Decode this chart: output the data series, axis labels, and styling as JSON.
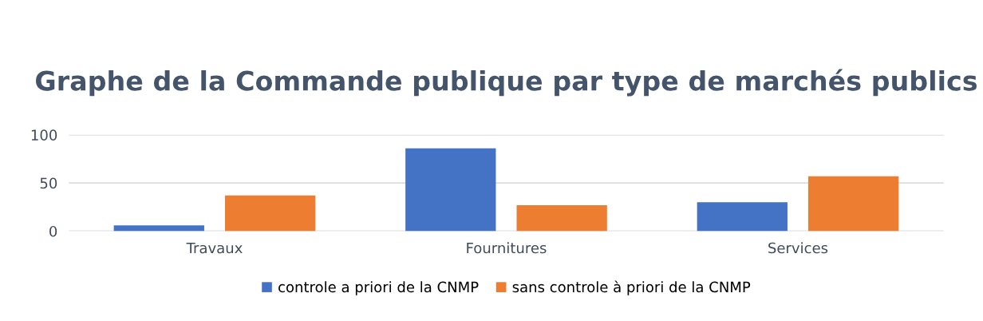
{
  "chart_data": {
    "type": "bar",
    "title": "Graphe de la Commande publique par type de marchés publics",
    "categories": [
      "Travaux",
      "Fournitures",
      "Services"
    ],
    "series": [
      {
        "name": "controle a priori de la CNMP",
        "color": "#4472c4",
        "values": [
          6,
          86,
          30
        ]
      },
      {
        "name": "sans controle à priori de la CNMP",
        "color": "#ed7d31",
        "values": [
          37,
          27,
          57
        ]
      }
    ],
    "ylim": [
      0,
      100
    ],
    "yticks": [
      0,
      50,
      100
    ],
    "grid": "y",
    "legend": "bottom"
  }
}
